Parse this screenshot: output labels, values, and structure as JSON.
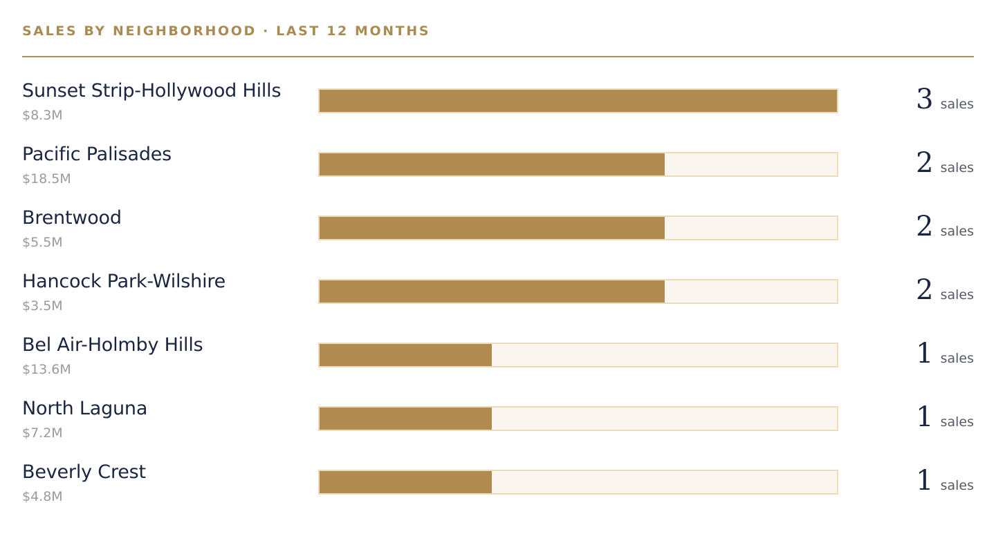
{
  "header": {
    "title": "SALES BY NEIGHBORHOOD · LAST 12 MONTHS"
  },
  "colors": {
    "accent": "#b08b4f",
    "track": "#faf5ee",
    "track_border": "#ecdcbc",
    "name_text": "#1a2540",
    "muted_text": "#9a9a9a"
  },
  "chart_data": {
    "type": "bar",
    "orientation": "horizontal",
    "title": "SALES BY NEIGHBORHOOD · LAST 12 MONTHS",
    "categories": [
      "Sunset Strip-Hollywood Hills",
      "Pacific Palisades",
      "Brentwood",
      "Hancock Park-Wilshire",
      "Bel Air-Holmby Hills",
      "North Laguna",
      "Beverly Crest"
    ],
    "values": [
      3,
      2,
      2,
      2,
      1,
      1,
      1
    ],
    "max": 3,
    "rows": [
      {
        "name": "Sunset Strip-Hollywood Hills",
        "volume": "$8.3M",
        "count": "3",
        "unit": "sales",
        "value": 3
      },
      {
        "name": "Pacific Palisades",
        "volume": "$18.5M",
        "count": "2",
        "unit": "sales",
        "value": 2
      },
      {
        "name": "Brentwood",
        "volume": "$5.5M",
        "count": "2",
        "unit": "sales",
        "value": 2
      },
      {
        "name": "Hancock Park-Wilshire",
        "volume": "$3.5M",
        "count": "2",
        "unit": "sales",
        "value": 2
      },
      {
        "name": "Bel Air-Holmby Hills",
        "volume": "$13.6M",
        "count": "1",
        "unit": "sales",
        "value": 1
      },
      {
        "name": "North Laguna",
        "volume": "$7.2M",
        "count": "1",
        "unit": "sales",
        "value": 1
      },
      {
        "name": "Beverly Crest",
        "volume": "$4.8M",
        "count": "1",
        "unit": "sales",
        "value": 1
      }
    ]
  }
}
